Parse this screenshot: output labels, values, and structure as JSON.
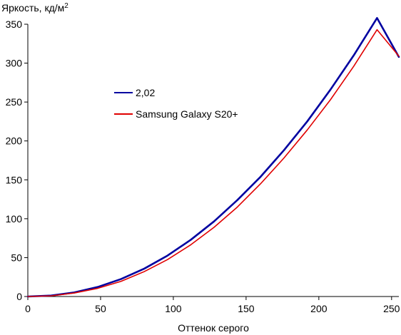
{
  "chart_data": {
    "type": "line",
    "xlabel": "Оттенок серого",
    "ylabel": "Яркость, кд/м",
    "ylabel_superscript": "2",
    "xlim": [
      0,
      255
    ],
    "ylim": [
      0,
      350
    ],
    "xticks": [
      0,
      50,
      100,
      150,
      200,
      250
    ],
    "yticks": [
      0,
      50,
      100,
      150,
      200,
      250,
      300,
      350
    ],
    "grid": false,
    "legend_position": "upper-left",
    "series": [
      {
        "name": "2,02",
        "color": "#0000a0",
        "x": [
          0,
          16,
          32,
          48,
          64,
          80,
          96,
          112,
          128,
          144,
          160,
          176,
          192,
          208,
          224,
          240,
          255
        ],
        "y": [
          0,
          1.2,
          5.2,
          12.2,
          22.4,
          35.8,
          52.6,
          72.9,
          96.6,
          124,
          154,
          188,
          225,
          266,
          310,
          358,
          308
        ]
      },
      {
        "name": "Samsung Galaxy S20+",
        "color": "#e00000",
        "x": [
          0,
          16,
          32,
          48,
          64,
          80,
          96,
          112,
          128,
          144,
          160,
          176,
          192,
          208,
          224,
          240,
          255
        ],
        "y": [
          0,
          0.8,
          4.5,
          10.5,
          19.5,
          32,
          47.5,
          66.5,
          89,
          115,
          145,
          178,
          214,
          253,
          296,
          343,
          309
        ]
      }
    ]
  }
}
